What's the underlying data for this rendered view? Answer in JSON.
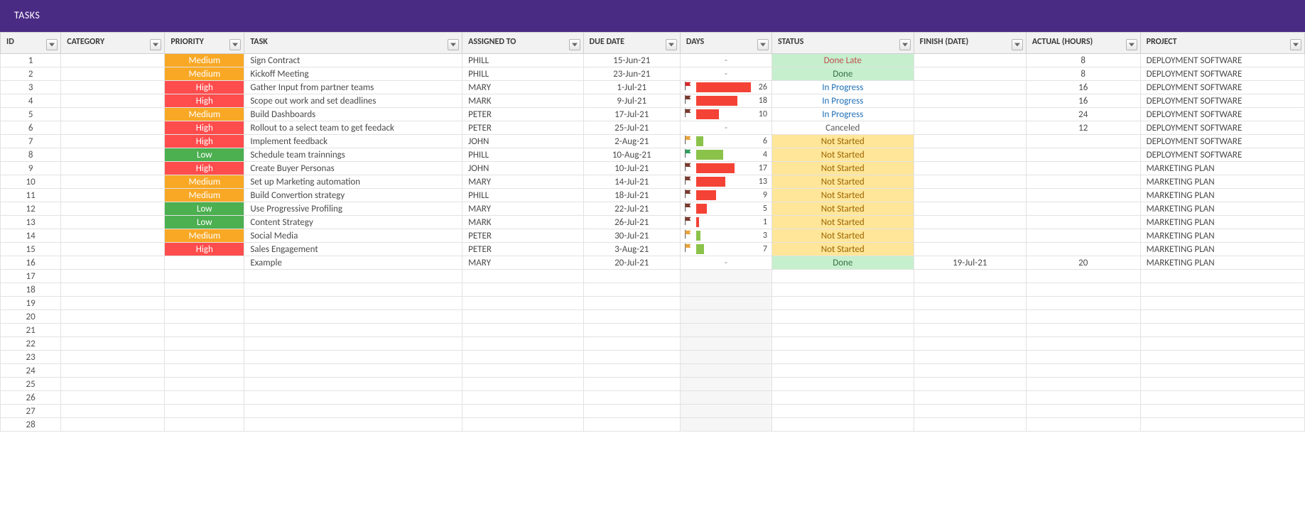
{
  "header": {
    "title": "TASKS"
  },
  "columns": [
    {
      "key": "id",
      "label": "ID"
    },
    {
      "key": "category",
      "label": "CATEGORY"
    },
    {
      "key": "priority",
      "label": "PRIORITY"
    },
    {
      "key": "task",
      "label": "TASK"
    },
    {
      "key": "assigned",
      "label": "ASSIGNED TO"
    },
    {
      "key": "due",
      "label": "DUE DATE"
    },
    {
      "key": "days",
      "label": "DAYS"
    },
    {
      "key": "status",
      "label": "STATUS"
    },
    {
      "key": "finish",
      "label": "FINISH (DATE)"
    },
    {
      "key": "actual",
      "label": "ACTUAL (HOURS)"
    },
    {
      "key": "project",
      "label": "PROJECT"
    }
  ],
  "colors": {
    "priority": {
      "High": "#ff4d4d",
      "Medium": "#f9a825",
      "Low": "#4caf50"
    },
    "status_bg": {
      "Done Late": "#c6efce",
      "Done": "#c6efce",
      "In Progress": "#ffffff",
      "Canceled": "#ffffff",
      "Not Started": "#ffe699"
    },
    "status_fg": {
      "Done Late": "#c05050",
      "Done": "#377245",
      "In Progress": "#1f6fb5",
      "Canceled": "#5a5a5a",
      "Not Started": "#9c6500"
    },
    "flag": {
      "red": "#d62728",
      "orange": "#e8a33d",
      "green": "#2e9e5b",
      "maroon": "#7a3b2e"
    },
    "days_bar": {
      "red": "#f44336",
      "green": "#8bc34a"
    }
  },
  "rows": [
    {
      "id": 1,
      "priority": "Medium",
      "task": "Sign Contract",
      "assigned": "PHILL",
      "due": "15-Jun-21",
      "days": "-",
      "status": "Done Late",
      "actual": "8",
      "project": "DEPLOYMENT SOFTWARE"
    },
    {
      "id": 2,
      "priority": "Medium",
      "task": "Kickoff Meeting",
      "assigned": "PHILL",
      "due": "23-Jun-21",
      "days": "-",
      "status": "Done",
      "actual": "8",
      "project": "DEPLOYMENT SOFTWARE"
    },
    {
      "id": 3,
      "priority": "High",
      "task": "Gather Input from partner teams",
      "assigned": "MARY",
      "due": "1-Jul-21",
      "days": "26",
      "flag": "red",
      "bar": "red",
      "bar_pct": 60,
      "status": "In Progress",
      "actual": "16",
      "project": "DEPLOYMENT SOFTWARE"
    },
    {
      "id": 4,
      "priority": "High",
      "task": "Scope out work and set deadlines",
      "assigned": "MARK",
      "due": "9-Jul-21",
      "days": "18",
      "flag": "maroon",
      "bar": "red",
      "bar_pct": 45,
      "status": "In Progress",
      "actual": "16",
      "project": "DEPLOYMENT SOFTWARE"
    },
    {
      "id": 5,
      "priority": "Medium",
      "task": "Build Dashboards",
      "assigned": "PETER",
      "due": "17-Jul-21",
      "days": "10",
      "flag": "maroon",
      "bar": "red",
      "bar_pct": 25,
      "status": "In Progress",
      "actual": "24",
      "project": "DEPLOYMENT SOFTWARE"
    },
    {
      "id": 6,
      "priority": "High",
      "task": "Rollout to a select team to get feedack",
      "assigned": "PETER",
      "due": "25-Jul-21",
      "days": "-",
      "status": "Canceled",
      "actual": "12",
      "project": "DEPLOYMENT SOFTWARE"
    },
    {
      "id": 7,
      "priority": "High",
      "task": "Implement feedback",
      "assigned": "JOHN",
      "due": "2-Aug-21",
      "days": "6",
      "flag": "orange",
      "bar": "green",
      "bar_pct": 8,
      "status": "Not Started",
      "project": "DEPLOYMENT SOFTWARE"
    },
    {
      "id": 8,
      "priority": "Low",
      "task": "Schedule team trainnings",
      "assigned": "PHILL",
      "due": "10-Aug-21",
      "days": "4",
      "flag": "green",
      "bar": "green",
      "bar_pct": 30,
      "status": "Not Started",
      "project": "DEPLOYMENT SOFTWARE"
    },
    {
      "id": 9,
      "priority": "High",
      "task": "Create Buyer Personas",
      "assigned": "JOHN",
      "due": "10-Jul-21",
      "days": "17",
      "flag": "maroon",
      "bar": "red",
      "bar_pct": 42,
      "status": "Not Started",
      "project": "MARKETING PLAN"
    },
    {
      "id": 10,
      "priority": "Medium",
      "task": "Set up Marketing automation",
      "assigned": "MARY",
      "due": "14-Jul-21",
      "days": "13",
      "flag": "maroon",
      "bar": "red",
      "bar_pct": 32,
      "status": "Not Started",
      "project": "MARKETING PLAN"
    },
    {
      "id": 11,
      "priority": "Medium",
      "task": "Build Convertion strategy",
      "assigned": "PHILL",
      "due": "18-Jul-21",
      "days": "9",
      "flag": "maroon",
      "bar": "red",
      "bar_pct": 22,
      "status": "Not Started",
      "project": "MARKETING PLAN"
    },
    {
      "id": 12,
      "priority": "Low",
      "task": "Use Progressive Profiling",
      "assigned": "MARY",
      "due": "22-Jul-21",
      "days": "5",
      "flag": "maroon",
      "bar": "red",
      "bar_pct": 12,
      "status": "Not Started",
      "project": "MARKETING PLAN"
    },
    {
      "id": 13,
      "priority": "Low",
      "task": "Content Strategy",
      "assigned": "MARK",
      "due": "26-Jul-21",
      "days": "1",
      "flag": "maroon",
      "bar": "red",
      "bar_pct": 3,
      "status": "Not Started",
      "project": "MARKETING PLAN"
    },
    {
      "id": 14,
      "priority": "Medium",
      "task": "Social Media",
      "assigned": "PETER",
      "due": "30-Jul-21",
      "days": "3",
      "flag": "orange",
      "bar": "green",
      "bar_pct": 5,
      "status": "Not Started",
      "project": "MARKETING PLAN"
    },
    {
      "id": 15,
      "priority": "High",
      "task": "Sales Engagement",
      "assigned": "PETER",
      "due": "3-Aug-21",
      "days": "7",
      "flag": "orange",
      "bar": "green",
      "bar_pct": 9,
      "status": "Not Started",
      "project": "MARKETING PLAN"
    },
    {
      "id": 16,
      "task": "Example",
      "assigned": "MARY",
      "due": "20-Jul-21",
      "days": "-",
      "status": "Done",
      "finish": "19-Jul-21",
      "actual": "20",
      "project": "MARKETING PLAN"
    }
  ],
  "empty_rows": [
    17,
    18,
    19,
    20,
    21,
    22,
    23,
    24,
    25,
    26,
    27,
    28
  ]
}
